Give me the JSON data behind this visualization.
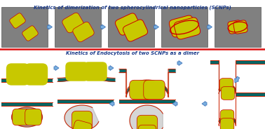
{
  "title_top": "Kinetics of dimerization of two spherocylindrical nanoparticles (SCNPs)",
  "title_bottom": "Kinetics of Endocytosis of two SCNPs as a dimer",
  "title_color": "#1a3a8a",
  "panel_bg": "#808080",
  "particle_color": "#c8c800",
  "particle_edge": "#cc0000",
  "membrane_teal": "#006666",
  "membrane_red": "#cc2200",
  "membrane_gray": "#999999",
  "arrow_face": "#7ab0e0",
  "arrow_edge": "#4477bb",
  "sep_color": "#dd1111",
  "bottom_bg": "#ffffff",
  "figsize": [
    3.78,
    1.84
  ],
  "dpi": 100
}
